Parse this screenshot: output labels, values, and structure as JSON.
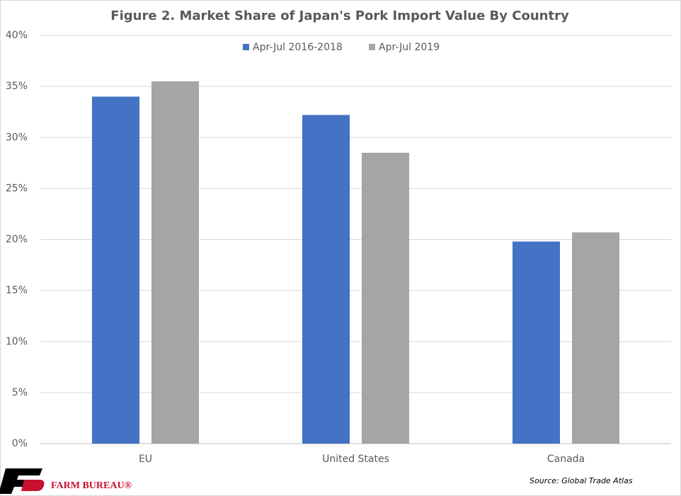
{
  "chart_data": {
    "type": "bar",
    "title": "Figure 2. Market Share of Japan's Pork Import Value By Country",
    "categories": [
      "EU",
      "United States",
      "Canada"
    ],
    "series": [
      {
        "name": "Apr-Jul 2016-2018",
        "color": "#4472c4",
        "values": [
          34.0,
          32.2,
          19.8
        ]
      },
      {
        "name": "Apr-Jul 2019",
        "color": "#a5a5a5",
        "values": [
          35.5,
          28.5,
          20.7
        ]
      }
    ],
    "ylim": [
      0,
      40
    ],
    "yticks": [
      {
        "value": 0,
        "label": "0%"
      },
      {
        "value": 5,
        "label": "5%"
      },
      {
        "value": 10,
        "label": "10%"
      },
      {
        "value": 15,
        "label": "15%"
      },
      {
        "value": 20,
        "label": "20%"
      },
      {
        "value": 25,
        "label": "25%"
      },
      {
        "value": 30,
        "label": "30%"
      },
      {
        "value": 35,
        "label": "35%"
      },
      {
        "value": 40,
        "label": "40%"
      }
    ],
    "grid": true,
    "legend": "top",
    "source": "Source: Global Trade Atlas",
    "logo_text": "FARM BUREAU®"
  }
}
